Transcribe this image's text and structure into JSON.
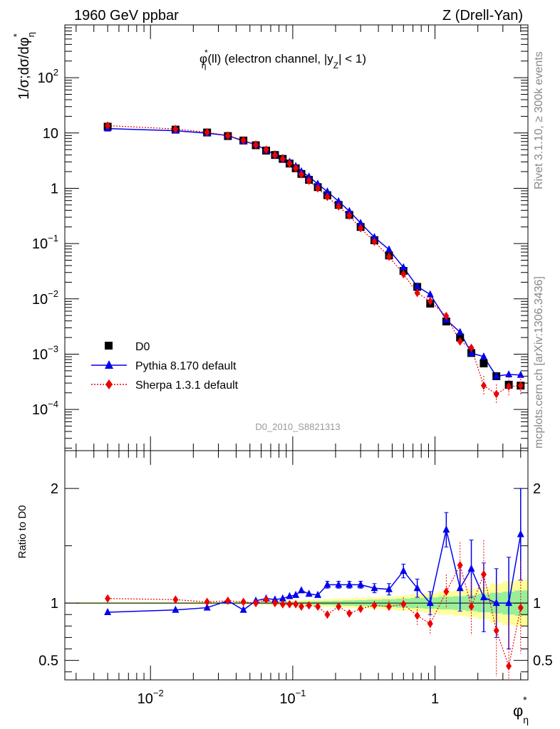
{
  "header": {
    "left_title": "1960 GeV ppbar",
    "right_title": "Z (Drell-Yan)"
  },
  "plot_title": {
    "pre": "φ",
    "sup": "*",
    "sub": "η",
    "mid": "(ll) (electron channel, |y",
    "sub2": "Z",
    "post": "| < 1)"
  },
  "side_labels": {
    "rivet": "Rivet 3.1.10, ≥ 300k events",
    "mcplots": "mcplots.cern.ch [arXiv:1306.3436]"
  },
  "analysis_id": "D0_2010_S8821313",
  "chart_data": [
    {
      "type": "scatter",
      "title": "φ*η(ll) (electron channel, |yZ| < 1)",
      "xscale": "log",
      "yscale": "log",
      "xlim": [
        0.0025,
        4.5
      ],
      "ylim": [
        1.8e-05,
        900
      ],
      "ylabel": "1/σ;dσ/dφ*η",
      "yticks": [
        {
          "v": 0.0001,
          "base": "10",
          "exp": "−4"
        },
        {
          "v": 0.001,
          "base": "10",
          "exp": "−3"
        },
        {
          "v": 0.01,
          "base": "10",
          "exp": "−2"
        },
        {
          "v": 0.1,
          "base": "10",
          "exp": "−1"
        },
        {
          "v": 1,
          "base": "1",
          "exp": ""
        },
        {
          "v": 10,
          "base": "10",
          "exp": ""
        },
        {
          "v": 100,
          "base": "10",
          "exp": "2"
        }
      ],
      "legend_position": "bottom-left",
      "legend": [
        "D0",
        "Pythia 8.170 default",
        "Sherpa 1.3.1 default"
      ],
      "colors": {
        "data": "#000000",
        "pythia": "#0000ee",
        "sherpa": "#ee0000"
      },
      "x": [
        0.005,
        0.015,
        0.025,
        0.035,
        0.045,
        0.055,
        0.065,
        0.075,
        0.085,
        0.095,
        0.105,
        0.115,
        0.13,
        0.15,
        0.175,
        0.21,
        0.25,
        0.3,
        0.375,
        0.475,
        0.6,
        0.75,
        0.925,
        1.2,
        1.5,
        1.8,
        2.2,
        2.7,
        3.3,
        4.0
      ],
      "series": [
        {
          "name": "D0",
          "values": [
            13,
            11.5,
            10.2,
            8.8,
            7.3,
            6.0,
            4.8,
            4.0,
            3.4,
            2.8,
            2.3,
            1.82,
            1.42,
            1.05,
            0.75,
            0.5,
            0.33,
            0.2,
            0.115,
            0.061,
            0.032,
            0.0165,
            0.0082,
            0.0039,
            0.002,
            0.00105,
            0.00068,
            0.0004,
            0.00028,
            0.00027
          ]
        },
        {
          "name": "Pythia 8.170 default",
          "values": [
            12.0,
            11.0,
            9.9,
            9.0,
            7.1,
            6.2,
            4.9,
            4.1,
            3.5,
            3.0,
            2.5,
            2.02,
            1.62,
            1.2,
            0.87,
            0.58,
            0.385,
            0.235,
            0.13,
            0.078,
            0.037,
            0.0168,
            0.012,
            0.0042,
            0.0025,
            0.00105,
            0.0009,
            0.0004,
            0.00043,
            0.00042
          ]
        },
        {
          "name": "Sherpa 1.3.1 default",
          "values": [
            13.6,
            11.8,
            10.3,
            9.0,
            7.4,
            6.1,
            5.0,
            4.0,
            3.4,
            2.8,
            2.3,
            1.78,
            1.37,
            1.0,
            0.7,
            0.47,
            0.32,
            0.19,
            0.108,
            0.058,
            0.028,
            0.0128,
            0.0091,
            0.0049,
            0.0017,
            0.0013,
            0.00027,
            0.00019,
            0.00026,
            0.00027
          ]
        }
      ]
    },
    {
      "type": "scatter",
      "xscale": "log",
      "yscale": "linear",
      "xlim": [
        0.0025,
        4.5
      ],
      "ylim": [
        0.33,
        2.33
      ],
      "ylabel": "Ratio to D0",
      "xlabel": "φ*η",
      "xticks": [
        {
          "v": 0.01,
          "base": "10",
          "exp": "−2"
        },
        {
          "v": 0.1,
          "base": "10",
          "exp": "−1"
        },
        {
          "v": 1,
          "base": "1",
          "exp": ""
        }
      ],
      "yticks": [
        "0.5",
        "1",
        "2"
      ],
      "yticks_values": [
        0.5,
        1,
        2
      ],
      "band_inner_rel": [
        0.005,
        0.005,
        0.005,
        0.006,
        0.006,
        0.007,
        0.008,
        0.009,
        0.01,
        0.011,
        0.012,
        0.013,
        0.014,
        0.016,
        0.018,
        0.02,
        0.023,
        0.026,
        0.03,
        0.034,
        0.04,
        0.045,
        0.05,
        0.055,
        0.06,
        0.07,
        0.08,
        0.09,
        0.1,
        0.11
      ],
      "band_outer_rel": [
        0.008,
        0.008,
        0.009,
        0.01,
        0.011,
        0.013,
        0.015,
        0.017,
        0.018,
        0.02,
        0.022,
        0.024,
        0.026,
        0.03,
        0.034,
        0.038,
        0.042,
        0.046,
        0.05,
        0.055,
        0.065,
        0.075,
        0.085,
        0.1,
        0.11,
        0.12,
        0.14,
        0.17,
        0.19,
        0.2
      ],
      "series": [
        {
          "name": "Pythia 8.170 default",
          "values": [
            0.92,
            0.94,
            0.96,
            1.02,
            0.94,
            1.02,
            1.04,
            1.03,
            1.04,
            1.06,
            1.07,
            1.11,
            1.08,
            1.07,
            1.16,
            1.16,
            1.16,
            1.16,
            1.13,
            1.12,
            1.28,
            1.13,
            1.0,
            1.64,
            1.13,
            1.3,
            1.05,
            1.0,
            1.0,
            1.6
          ],
          "err": [
            0.01,
            0.01,
            0.01,
            0.01,
            0.01,
            0.01,
            0.01,
            0.01,
            0.015,
            0.015,
            0.015,
            0.02,
            0.02,
            0.02,
            0.03,
            0.03,
            0.03,
            0.03,
            0.04,
            0.05,
            0.06,
            0.08,
            0.1,
            0.15,
            0.2,
            0.25,
            0.3,
            0.3,
            0.4,
            0.4
          ]
        },
        {
          "name": "Sherpa 1.3.1 default",
          "values": [
            1.04,
            1.03,
            1.01,
            1.02,
            1.01,
            1.0,
            1.03,
            1.0,
            0.99,
            0.99,
            0.99,
            0.97,
            0.98,
            0.97,
            0.9,
            0.97,
            0.91,
            0.95,
            0.98,
            0.97,
            0.99,
            0.89,
            0.82,
            1.1,
            1.33,
            0.97,
            1.25,
            0.76,
            0.45,
            0.96
          ],
          "err": [
            0.01,
            0.01,
            0.01,
            0.01,
            0.01,
            0.01,
            0.01,
            0.01,
            0.015,
            0.015,
            0.015,
            0.02,
            0.02,
            0.02,
            0.03,
            0.03,
            0.03,
            0.03,
            0.04,
            0.05,
            0.06,
            0.08,
            0.1,
            0.15,
            0.2,
            0.25,
            0.3,
            0.4,
            0.4,
            0.4
          ]
        }
      ]
    }
  ]
}
